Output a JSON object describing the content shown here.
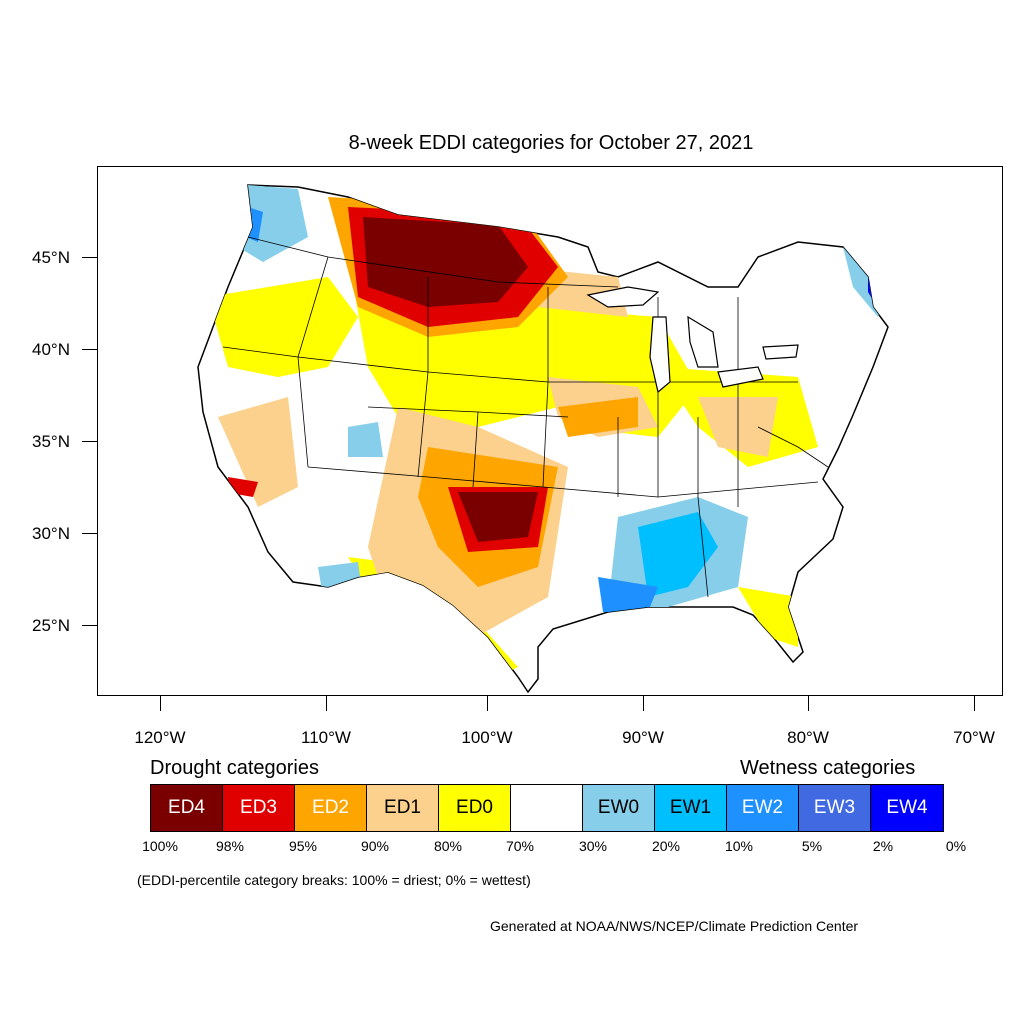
{
  "title": "8-week EDDI categories for October 27, 2021",
  "axes": {
    "lat_labels": [
      "45°N",
      "40°N",
      "35°N",
      "30°N",
      "25°N"
    ],
    "lon_labels": [
      "120°W",
      "110°W",
      "100°W",
      "90°W",
      "80°W",
      "70°W"
    ]
  },
  "legend": {
    "drought_header": "Drought categories",
    "wetness_header": "Wetness categories",
    "categories": [
      {
        "label": "ED4",
        "color": "#7a0000",
        "text_color": "#ffffff"
      },
      {
        "label": "ED3",
        "color": "#e00000",
        "text_color": "#ffffff"
      },
      {
        "label": "ED2",
        "color": "#ffa500",
        "text_color": "#ffffff"
      },
      {
        "label": "ED1",
        "color": "#fcd18e",
        "text_color": "#000000"
      },
      {
        "label": "ED0",
        "color": "#ffff00",
        "text_color": "#000000"
      },
      {
        "label": "",
        "color": "#ffffff",
        "text_color": "#000000"
      },
      {
        "label": "EW0",
        "color": "#87ceeb",
        "text_color": "#000000"
      },
      {
        "label": "EW1",
        "color": "#00bfff",
        "text_color": "#000000"
      },
      {
        "label": "EW2",
        "color": "#1e90ff",
        "text_color": "#ffffff"
      },
      {
        "label": "EW3",
        "color": "#4169e1",
        "text_color": "#ffffff"
      },
      {
        "label": "EW4",
        "color": "#0000ff",
        "text_color": "#ffffff"
      }
    ],
    "breaks": [
      "100%",
      "98%",
      "95%",
      "90%",
      "80%",
      "70%",
      "30%",
      "20%",
      "10%",
      "5%",
      "2%",
      "0%"
    ]
  },
  "note": "(EDDI-percentile category breaks: 100% = driest; 0% = wettest)",
  "credit": "Generated at NOAA/NWS/NCEP/Climate Prediction Center"
}
